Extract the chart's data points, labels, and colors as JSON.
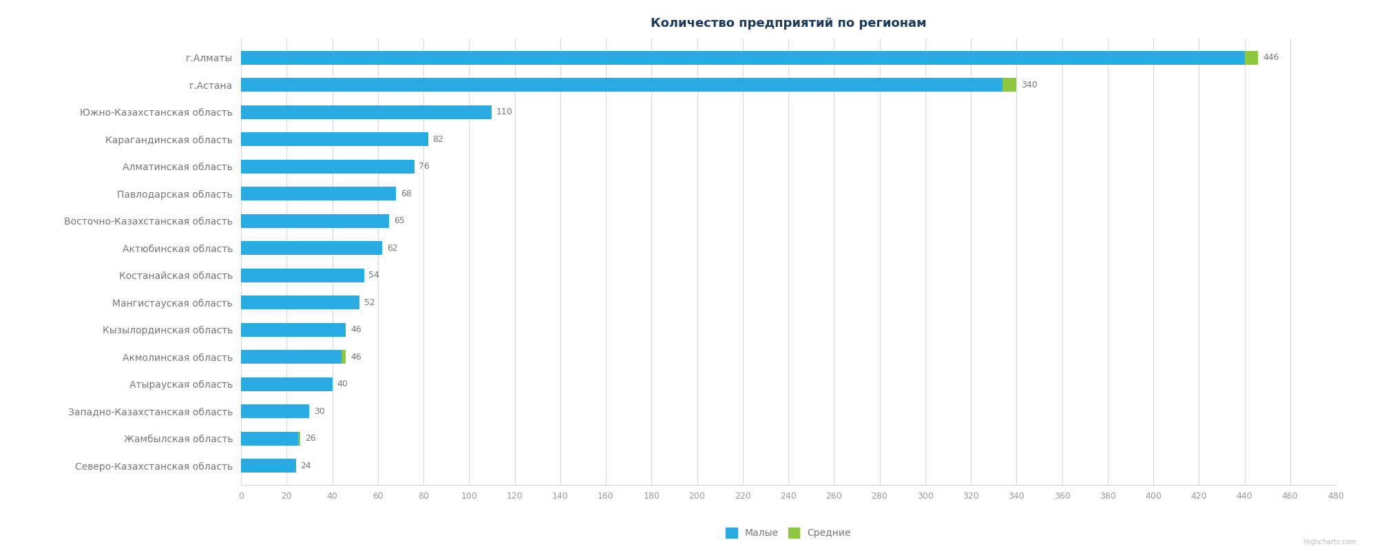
{
  "title": "Количество предприятий по регионам",
  "categories": [
    "г.Алматы",
    "г.Астана",
    "Южно-Казахстанская область",
    "Карагандинская область",
    "Алматинская область",
    "Павлодарская область",
    "Восточно-Казахстанская область",
    "Актюбинская область",
    "Костанайская область",
    "Мангистауская область",
    "Кызылординская область",
    "Акмолинская область",
    "Атырауская область",
    "Западно-Казахстанская область",
    "Жамбылская область",
    "Северо-Казахстанская область"
  ],
  "small_values": [
    440,
    334,
    110,
    82,
    76,
    68,
    65,
    62,
    54,
    52,
    46,
    44,
    40,
    30,
    25,
    24
  ],
  "medium_values": [
    6,
    6,
    0,
    0,
    0,
    0,
    0,
    0,
    0,
    0,
    0,
    2,
    0,
    0,
    1,
    0
  ],
  "totals": [
    446,
    340,
    110,
    82,
    76,
    68,
    65,
    62,
    54,
    52,
    46,
    46,
    40,
    30,
    26,
    24
  ],
  "blue_color": "#29ABE2",
  "green_color": "#8DC63F",
  "background_color": "#FFFFFF",
  "grid_color": "#D8D8D8",
  "title_color": "#1A3A5C",
  "label_color": "#777777",
  "tick_color": "#999999",
  "legend_entries": [
    "Малые",
    "Средние"
  ],
  "xlim": [
    0,
    480
  ],
  "xticks": [
    0,
    20,
    40,
    60,
    80,
    100,
    120,
    140,
    160,
    180,
    200,
    220,
    240,
    260,
    280,
    300,
    320,
    340,
    360,
    380,
    400,
    420,
    440,
    460,
    480
  ],
  "title_fontsize": 13,
  "label_fontsize": 10,
  "tick_fontsize": 9,
  "bar_height": 0.5,
  "value_label_fontsize": 9
}
